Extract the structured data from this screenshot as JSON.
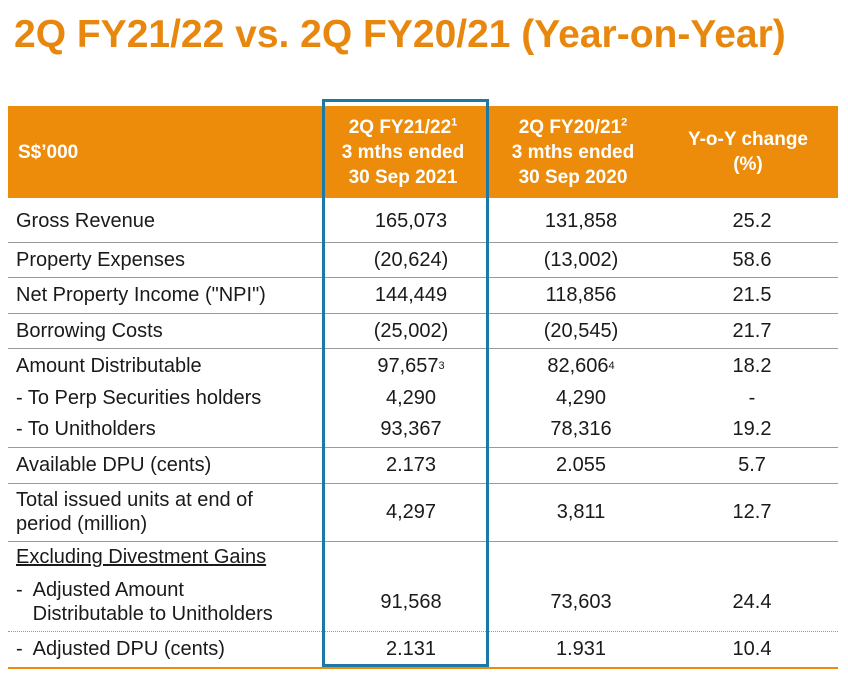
{
  "title": "2Q FY21/22 vs. 2Q FY20/21 (Year-on-Year)",
  "header": {
    "label": "S$’000",
    "col1": {
      "line1": "2Q FY21/22",
      "sup": "1",
      "line2": "3 mths ended",
      "line3": "30 Sep 2021"
    },
    "col2": {
      "line1": "2Q FY20/21",
      "sup": "2",
      "line2": "3 mths ended",
      "line3": "30 Sep 2020"
    },
    "col3": {
      "line1": "Y-o-Y change",
      "line2": "(%)"
    }
  },
  "rows": [
    {
      "label": "Gross Revenue",
      "c1": "165,073",
      "c2": "131,858",
      "c3": "25.2"
    },
    {
      "label": "Property Expenses",
      "c1": "(20,624)",
      "c2": "(13,002)",
      "c3": "58.6"
    },
    {
      "label": "Net Property Income (\"NPI\")",
      "c1": "144,449",
      "c2": "118,856",
      "c3": "21.5"
    },
    {
      "label": "Borrowing Costs",
      "c1": "(25,002)",
      "c2": "(20,545)",
      "c3": "21.7"
    },
    {
      "label": "Amount Distributable",
      "c1": "97,657",
      "c1_sup": "3",
      "c2": "82,606",
      "c2_sup": "4",
      "c3": "18.2"
    },
    {
      "label": "- To Perp Securities holders",
      "c1": "4,290",
      "c2": "4,290",
      "c3": "-"
    },
    {
      "label": "- To Unitholders",
      "c1": "93,367",
      "c2": "78,316",
      "c3": "19.2"
    },
    {
      "label": "Available DPU (cents)",
      "c1": "2.173",
      "c2": "2.055",
      "c3": "5.7"
    },
    {
      "label1": "Total issued units at end of",
      "label2": "period (million)",
      "c1": "4,297",
      "c2": "3,811",
      "c3": "12.7"
    },
    {
      "label": "Excluding Divestment Gains"
    },
    {
      "label1": "-  Adjusted Amount",
      "label2": "   Distributable to Unitholders",
      "c1": "91,568",
      "c2": "73,603",
      "c3": "24.4"
    },
    {
      "label": "-  Adjusted DPU (cents)",
      "c1": "2.131",
      "c2": "1.931",
      "c3": "10.4"
    }
  ]
}
